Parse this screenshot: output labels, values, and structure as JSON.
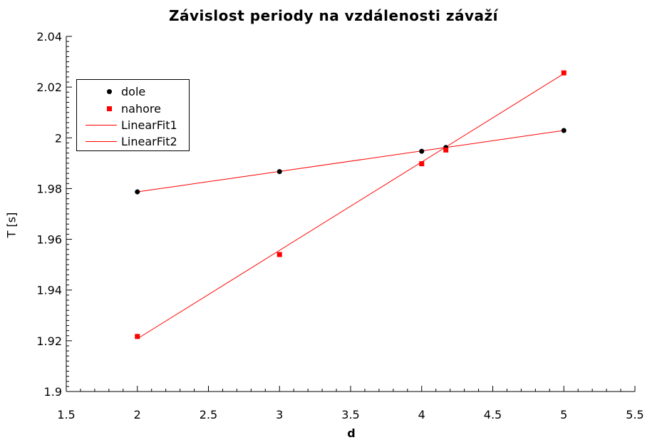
{
  "chart_data": {
    "type": "scatter",
    "title": "Závislost periody na vzdálenosti závaží",
    "xlabel": "d",
    "ylabel": "T [s]",
    "xlim": [
      1.5,
      5.5
    ],
    "ylim": [
      1.9,
      2.04
    ],
    "xticks": [
      "1.5",
      "2",
      "2.5",
      "3",
      "3.5",
      "4",
      "4.5",
      "5",
      "5.5"
    ],
    "yticks": [
      "1.9",
      "1.92",
      "1.94",
      "1.96",
      "1.98",
      "2",
      "2.02",
      "2.04"
    ],
    "grid": false,
    "legend_position": "top-left",
    "series": [
      {
        "name": "dole",
        "kind": "points",
        "marker": "circle",
        "color": "#000000",
        "x": [
          2,
          3,
          4,
          4.17,
          5
        ],
        "y": [
          1.9787,
          1.9867,
          1.9947,
          1.9962,
          2.0029
        ]
      },
      {
        "name": "nahore",
        "kind": "points",
        "marker": "square",
        "color": "#ff0000",
        "x": [
          2,
          3,
          4,
          4.17,
          5
        ],
        "y": [
          1.9217,
          1.954,
          1.9898,
          1.9952,
          2.0256
        ]
      },
      {
        "name": "LinearFit1",
        "kind": "line",
        "color": "#ff0000",
        "x": [
          2,
          5
        ],
        "y": [
          1.9787,
          2.0029
        ]
      },
      {
        "name": "LinearFit2",
        "kind": "line",
        "color": "#ff0000",
        "x": [
          2,
          5
        ],
        "y": [
          1.9208,
          2.0253
        ]
      }
    ]
  }
}
